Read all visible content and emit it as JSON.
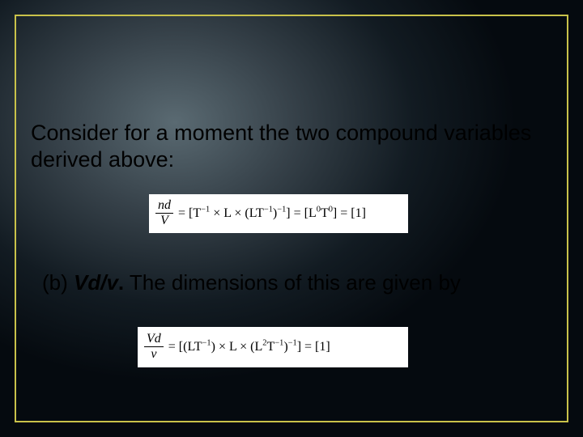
{
  "slide": {
    "border_color": "#c9c24a",
    "bg_gradient_center": "#5a6a72",
    "bg_gradient_mid": "#364149",
    "bg_gradient_dark": "#121b22",
    "bg_gradient_edge": "#050a0f"
  },
  "intro_text": "Consider for a moment the two compound variables derived above:",
  "eq_a": {
    "frac_num_html": "<span class='it'>nd</span>",
    "frac_den_html": "<span class='it'>V</span>",
    "rhs_html": "= [T<sup>&minus;1</sup> &times; L &times; (LT<sup>&minus;1</sup>)<sup>&minus;1</sup>] = [L<sup>0</sup>T<sup>0</sup>] = [1]"
  },
  "line_b": {
    "label": "(b) ",
    "var": "Vd/v",
    "period": ".",
    "rest": " The dimensions of this are given by"
  },
  "eq_b": {
    "frac_num_html": "<span class='it'>Vd</span>",
    "frac_den_html": "<span class='it'>&nu;</span>",
    "rhs_html": "= [(LT<sup>&minus;1</sup>) &times; L &times; (L<sup>2</sup>T<sup>&minus;1</sup>)<sup>&minus;1</sup>] = [1]"
  },
  "fontsizes": {
    "body_pt": 27,
    "line_b_pt": 26,
    "eq_pt": 16
  }
}
